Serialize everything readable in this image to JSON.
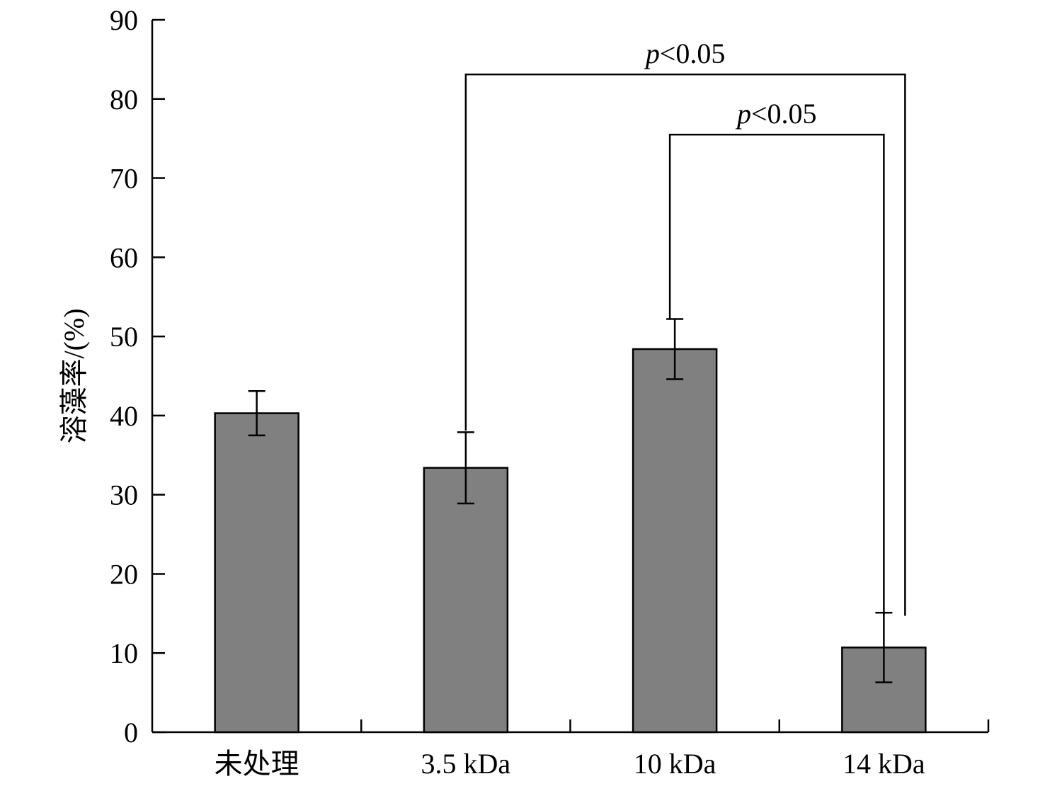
{
  "chart_data": {
    "type": "bar",
    "categories": [
      "未处理",
      "3.5 kDa",
      "10 kDa",
      "14 kDa"
    ],
    "values": [
      40.3,
      33.4,
      48.4,
      10.7
    ],
    "errors": [
      2.8,
      4.5,
      3.8,
      4.4
    ],
    "bar_color": "#808080",
    "title": "",
    "xlabel": "",
    "ylabel": "溶藻率/(%)",
    "ylim": [
      0,
      90
    ],
    "yticks": [
      0,
      10,
      20,
      30,
      40,
      50,
      60,
      70,
      80,
      90
    ],
    "grid": false,
    "legend": "none",
    "annotations": [
      {
        "from": "3.5 kDa",
        "to": "14 kDa",
        "p_symbol": "p",
        "p_rest": "<0.05",
        "y": 83.1,
        "left_drop_y": 38.1,
        "right_drop_y": 14.7
      },
      {
        "from": "10 kDa",
        "to": "14 kDa",
        "p_symbol": "p",
        "p_rest": "<0.05",
        "y": 75.5,
        "left_drop_y": 52.2,
        "right_drop_y": 14.7
      }
    ]
  }
}
